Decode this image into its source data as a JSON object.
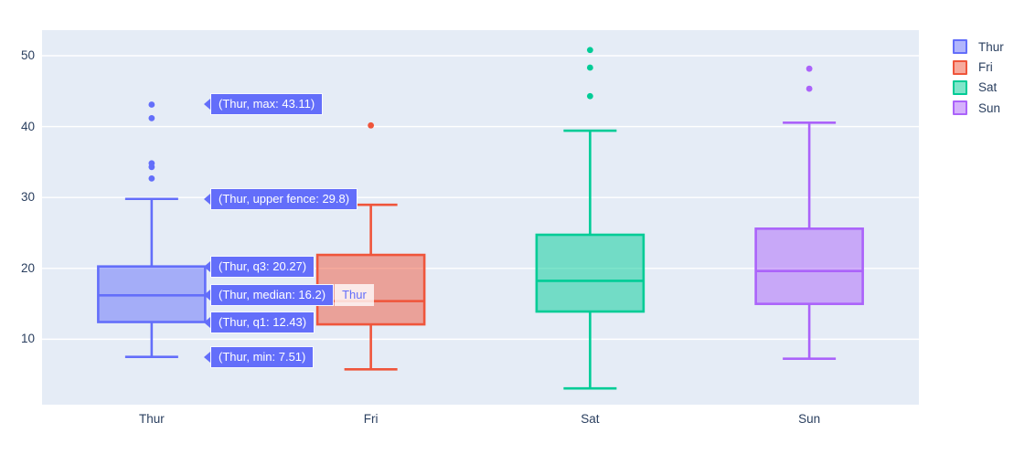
{
  "colors": {
    "paper_bg": "#ffffff",
    "plot_bg": "#E5ECF6",
    "gridline": "#ffffff",
    "tick_text": "#2a3f5f",
    "hover_bg": "#636EFA",
    "hover_text": "#ffffff"
  },
  "y_axis": {
    "ticks": [
      10,
      20,
      30,
      40,
      50
    ]
  },
  "x_axis": {
    "categories": [
      "Thur",
      "Fri",
      "Sat",
      "Sun"
    ]
  },
  "legend": {
    "items": [
      {
        "label": "Thur",
        "color": "#636EFA",
        "fill": "rgba(99,110,250,0.5)"
      },
      {
        "label": "Fri",
        "color": "#EF553B",
        "fill": "rgba(239,85,59,0.5)"
      },
      {
        "label": "Sat",
        "color": "#00CC96",
        "fill": "rgba(0,204,150,0.5)"
      },
      {
        "label": "Sun",
        "color": "#AB63FA",
        "fill": "rgba(171,99,250,0.5)"
      }
    ]
  },
  "chart_data": {
    "type": "box",
    "title": "",
    "xlabel": "",
    "ylabel": "",
    "categories": [
      "Thur",
      "Fri",
      "Sat",
      "Sun"
    ],
    "ylim": [
      0.77,
      53.61
    ],
    "grid": true,
    "legend_position": "right",
    "series": [
      {
        "name": "Thur",
        "color": "#636EFA",
        "fill": "rgba(99,110,250,0.5)",
        "min": 7.51,
        "q1": 12.43,
        "median": 16.2,
        "q3": 20.27,
        "upper_fence": 29.8,
        "max": 43.11,
        "outliers": [
          32.68,
          34.3,
          34.83,
          41.19,
          43.11
        ]
      },
      {
        "name": "Fri",
        "color": "#EF553B",
        "fill": "rgba(239,85,59,0.5)",
        "min": 5.75,
        "q1": 12.1,
        "median": 15.38,
        "q3": 21.9,
        "upper_fence": 28.97,
        "max": 40.17,
        "outliers": [
          40.17
        ]
      },
      {
        "name": "Sat",
        "color": "#00CC96",
        "fill": "rgba(0,204,150,0.5)",
        "min": 3.07,
        "q1": 13.91,
        "median": 18.24,
        "q3": 24.74,
        "upper_fence": 39.42,
        "max": 50.81,
        "outliers": [
          44.3,
          48.33,
          50.81
        ]
      },
      {
        "name": "Sun",
        "color": "#AB63FA",
        "fill": "rgba(171,99,250,0.5)",
        "min": 7.25,
        "q1": 14.99,
        "median": 19.63,
        "q3": 25.6,
        "upper_fence": 40.55,
        "max": 48.17,
        "outliers": [
          45.35,
          48.17
        ]
      }
    ]
  },
  "tooltips": {
    "bg": "#636EFA",
    "secondary_text_color": "#636EFA",
    "items": [
      {
        "text": "(Thur, max: 43.11)",
        "value": 43.11
      },
      {
        "text": "(Thur, upper fence: 29.8)",
        "value": 29.8
      },
      {
        "text": "(Thur, q3: 20.27)",
        "value": 20.27
      },
      {
        "text": "(Thur, median: 16.2)",
        "value": 16.2,
        "secondary": "Thur"
      },
      {
        "text": "(Thur, q1: 12.43)",
        "value": 12.43
      },
      {
        "text": "(Thur, min: 7.51)",
        "value": 7.51
      }
    ]
  }
}
